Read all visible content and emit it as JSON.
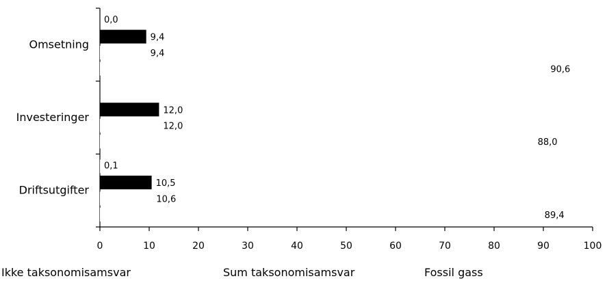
{
  "chart_data": {
    "type": "bar",
    "orientation": "horizontal",
    "categories": [
      "Omsetning",
      "Investeringer",
      "Driftsutgifter"
    ],
    "series": [
      {
        "name": "Fossil gass",
        "values": [
          0.0,
          null,
          0.1
        ],
        "labels": [
          "0,0",
          "",
          "0,1"
        ],
        "color": "#ffffff"
      },
      {
        "name": "Sum taksonomisamsvar",
        "values": [
          9.4,
          12.0,
          10.5
        ],
        "labels": [
          "9,4",
          "12,0",
          "10,5"
        ],
        "color": "#000000"
      },
      {
        "name": "",
        "values": [
          9.4,
          12.0,
          10.6
        ],
        "labels": [
          "9,4",
          "12,0",
          "10,6"
        ],
        "color": "#ffffff"
      },
      {
        "name": "Ikke taksonomisamsvar",
        "values": [
          90.6,
          88.0,
          89.4
        ],
        "labels": [
          "90,6",
          "88,0",
          "89,4"
        ],
        "color": "#ffffff"
      }
    ],
    "xlim": [
      0,
      100
    ],
    "xticks": [
      "0",
      "10",
      "20",
      "30",
      "40",
      "50",
      "60",
      "70",
      "80",
      "90",
      "100"
    ],
    "legend": {
      "placement": "bottom",
      "entries": [
        "Ikke taksonomisamsvar",
        "Sum taksonomisamsvar",
        "Fossil gass"
      ]
    },
    "grid": false
  }
}
